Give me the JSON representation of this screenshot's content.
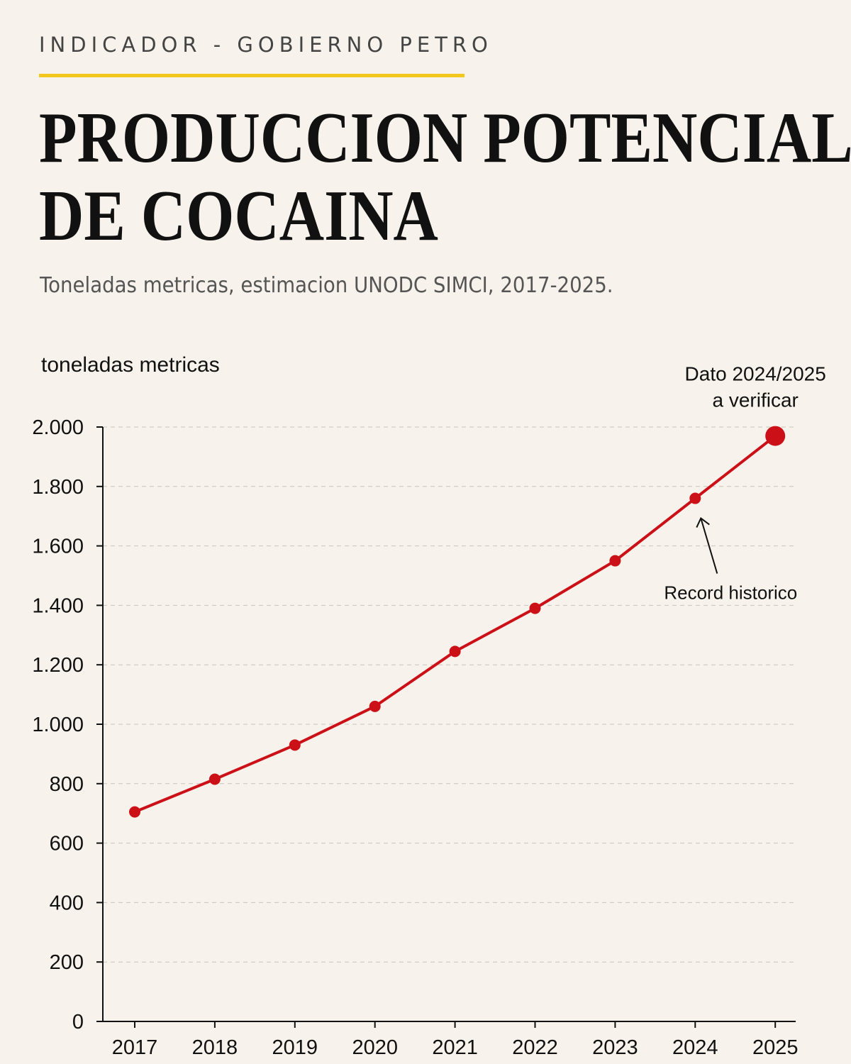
{
  "header": {
    "kicker": "INDICADOR - GOBIERNO PETRO",
    "title_line1": "PRODUCCION POTENCIAL",
    "title_line2": "DE COCAINA",
    "subtitle": "Toneladas  metricas,  estimacion UNODC  SIMCI, 2017-2025."
  },
  "colors": {
    "accent": "#f2c81e",
    "series": "#cc1018",
    "background": "#f7f3ec"
  },
  "chart_data": {
    "type": "line",
    "ylabel": "toneladas metricas",
    "xlabel": "",
    "categories": [
      "2017",
      "2018",
      "2019",
      "2020",
      "2021",
      "2022",
      "2023",
      "2024",
      "2025"
    ],
    "series": [
      {
        "values": [
          705,
          815,
          930,
          1060,
          1245,
          1390,
          1550,
          1760,
          1970
        ]
      }
    ],
    "ylim": [
      0,
      2000
    ],
    "yticks": [
      0,
      200,
      400,
      600,
      800,
      1000,
      1200,
      1400,
      1600,
      1800,
      2000
    ],
    "ytick_labels": [
      "0",
      "200",
      "400",
      "600",
      "800",
      "1.000",
      "1.200",
      "1.400",
      "1.600",
      "1.800",
      "2.000"
    ],
    "grid": "horizontal dashed",
    "annotations": [
      {
        "text": "Record historico",
        "x": "2024",
        "y": 1760
      },
      {
        "text_line1": "Dato 2024/2025",
        "text_line2": "a verificar",
        "x": "2025",
        "y": 1970
      }
    ]
  }
}
